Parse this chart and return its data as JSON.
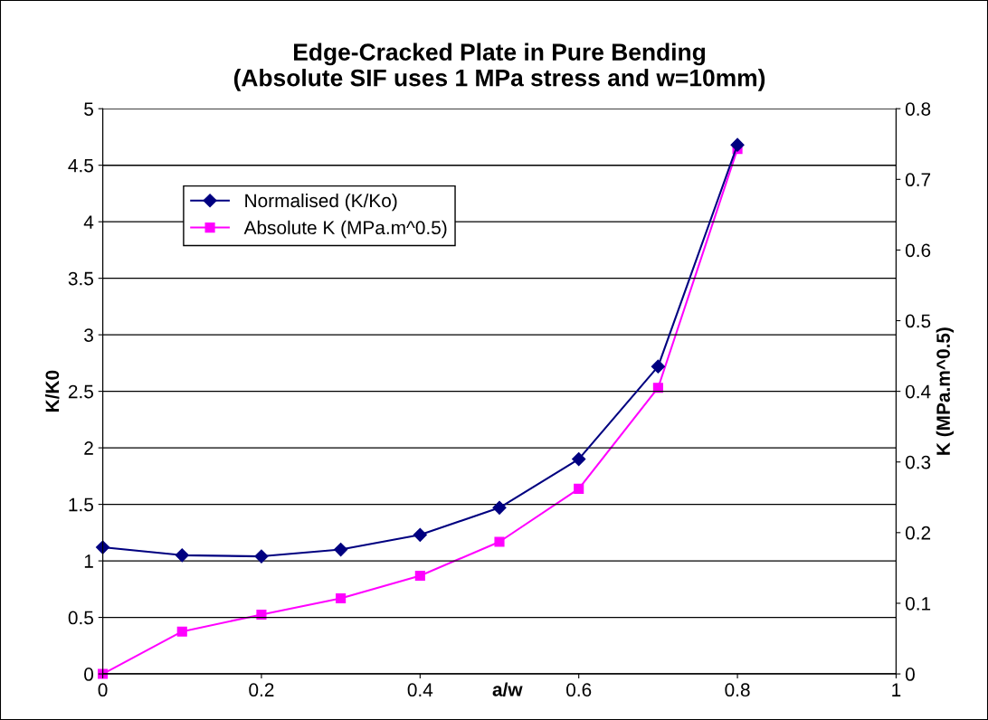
{
  "chart_data": {
    "type": "line",
    "title": "Edge-Cracked Plate in Pure Bending\n(Absolute SIF uses 1 MPa stress and w=10mm)",
    "xlabel": "a/w",
    "ylabel": "K/K0",
    "y2label": "K (MPa.m^0.5)",
    "x": [
      0,
      0.1,
      0.2,
      0.3,
      0.4,
      0.5,
      0.6,
      0.7,
      0.8
    ],
    "series": [
      {
        "name": "Normalised (K/Ko)",
        "color": "#000080",
        "marker": "diamond",
        "values": [
          1.12,
          1.05,
          1.04,
          1.1,
          1.23,
          1.47,
          1.9,
          2.72,
          4.68
        ]
      },
      {
        "name": "Absolute K (MPa.m^0.5)",
        "color": "#ff00ff",
        "marker": "square",
        "axis": "y2",
        "values": [
          0,
          0.06,
          0.084,
          0.107,
          0.139,
          0.187,
          0.262,
          0.405,
          0.743
        ]
      }
    ],
    "xlim": [
      0,
      1
    ],
    "xticks": [
      0,
      0.2,
      0.4,
      0.6,
      0.8,
      1
    ],
    "ylim": [
      0,
      5
    ],
    "yticks": [
      0,
      0.5,
      1,
      1.5,
      2,
      2.5,
      3,
      3.5,
      4,
      4.5,
      5
    ],
    "y2lim": [
      0,
      0.8
    ],
    "y2ticks": [
      0,
      0.1,
      0.2,
      0.3,
      0.4,
      0.5,
      0.6,
      0.7,
      0.8
    ],
    "grid": "y",
    "legend": "top left",
    "line_style": "solid"
  }
}
